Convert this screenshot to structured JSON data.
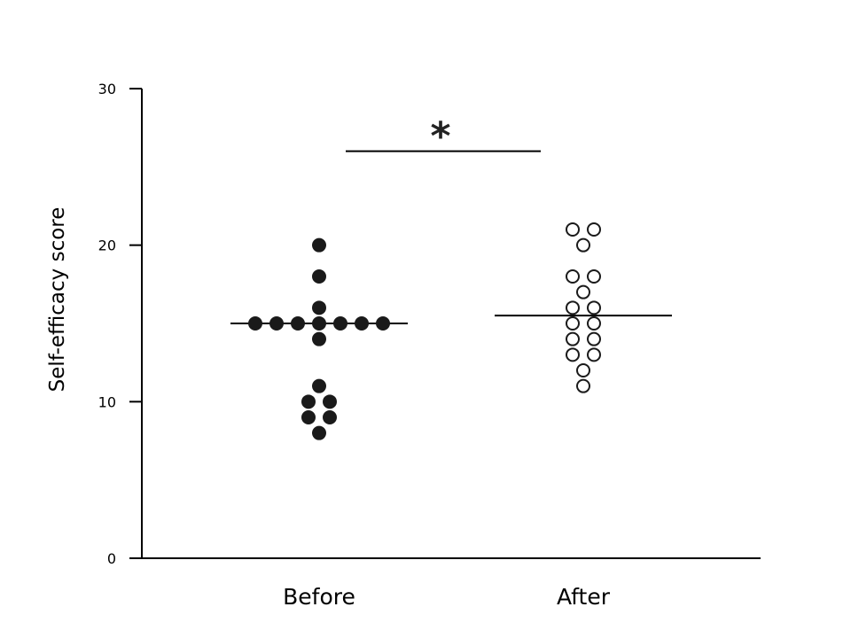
{
  "chart_data": {
    "type": "scatter",
    "title": "",
    "xlabel": "",
    "ylabel": "Self-efficacy score",
    "ylim": [
      0,
      30
    ],
    "yticks": [
      0,
      10,
      20,
      30
    ],
    "grid": false,
    "legend": "none",
    "categories": [
      "Before",
      "After"
    ],
    "series": [
      {
        "category": "Before",
        "marker": "filled-circle",
        "color": "#1a1a1a",
        "median": 15,
        "values": [
          20,
          18,
          16,
          15,
          15,
          15,
          15,
          15,
          15,
          15,
          14,
          11,
          10,
          10,
          9,
          9,
          8
        ]
      },
      {
        "category": "After",
        "marker": "open-circle",
        "color": "#1a1a1a",
        "median": 15.5,
        "values": [
          21,
          21,
          20,
          18,
          18,
          17,
          16,
          16,
          15,
          15,
          14,
          14,
          13,
          13,
          12,
          11
        ]
      }
    ],
    "annotations": [
      {
        "type": "significance",
        "text": "*",
        "between": [
          "Before",
          "After"
        ],
        "y": 26
      }
    ]
  }
}
